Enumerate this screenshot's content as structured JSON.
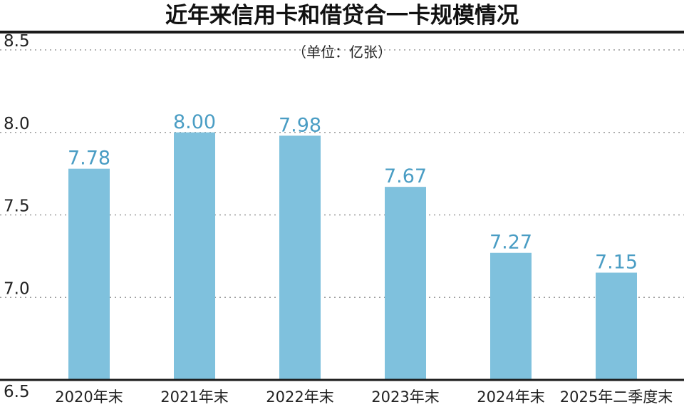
{
  "chart_data": {
    "type": "bar",
    "title": "近年来信用卡和借贷合一卡规模情况",
    "subtitle": "（单位：亿张）",
    "categories": [
      "2020年末",
      "2021年末",
      "2022年末",
      "2023年末",
      "2024年末",
      "2025年二季度末"
    ],
    "values": [
      7.78,
      8.0,
      7.98,
      7.67,
      7.27,
      7.15
    ],
    "value_labels": [
      "7.78",
      "8.00",
      "7.98",
      "7.67",
      "7.27",
      "7.15"
    ],
    "yticks": [
      "8.5",
      "8.0",
      "7.5",
      "7.0",
      "6.5"
    ],
    "ylim": [
      6.5,
      8.5
    ],
    "grid": true,
    "bar_color": "#7fc1dd",
    "label_color": "#4a9dc4"
  }
}
